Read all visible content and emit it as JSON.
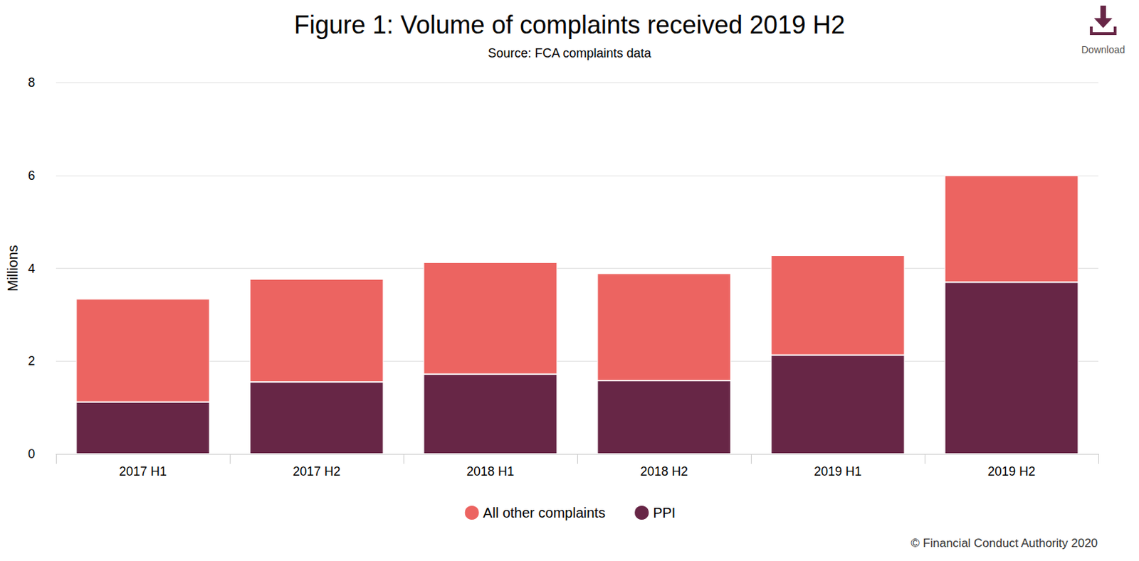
{
  "chart_data": {
    "type": "bar",
    "title": "Figure 1: Volume of complaints received 2019 H2",
    "subtitle": "Source: FCA complaints data",
    "y_label": "Millions",
    "categories": [
      "2017 H1",
      "2017 H2",
      "2018 H1",
      "2018 H2",
      "2019 H1",
      "2019 H2"
    ],
    "series": [
      {
        "name": "All other complaints",
        "color": "#ec6461",
        "values": [
          2.22,
          2.22,
          2.41,
          2.31,
          2.15,
          2.3
        ]
      },
      {
        "name": "PPI",
        "color": "#672646",
        "values": [
          1.12,
          1.55,
          1.72,
          1.58,
          2.13,
          3.7
        ]
      }
    ],
    "stacked": true,
    "ylim": [
      0,
      8
    ],
    "yticks": [
      0,
      2,
      4,
      6,
      8
    ],
    "grid": true,
    "legend": "bottom",
    "annotations": [
      {
        "text": "© Financial Conduct Authority 2020"
      },
      {
        "text": "Download"
      }
    ]
  }
}
